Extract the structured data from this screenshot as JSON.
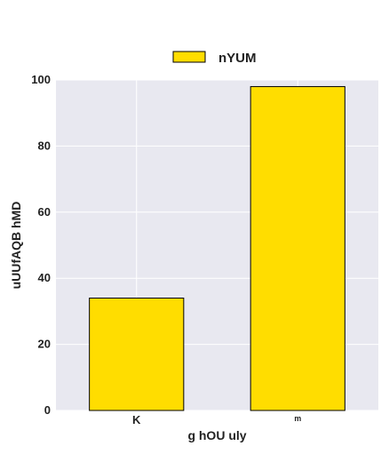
{
  "chart_data": {
    "type": "bar",
    "title": "",
    "xlabel": "g hOU uly",
    "ylabel": "uUUfAQB  hMD",
    "categories": [
      "K",
      "ᵐ"
    ],
    "series": [
      {
        "name": "nYUM",
        "values": [
          34,
          98
        ]
      }
    ],
    "ylim": [
      0,
      100
    ],
    "yticks": [
      0,
      20,
      40,
      60,
      80,
      100
    ],
    "grid": true,
    "legend": "top-center",
    "colors": {
      "bar_fill": "#ffdd00",
      "bar_stroke": "#000000",
      "plot_background": "#e8e8f0",
      "grid": "#ffffff"
    }
  }
}
